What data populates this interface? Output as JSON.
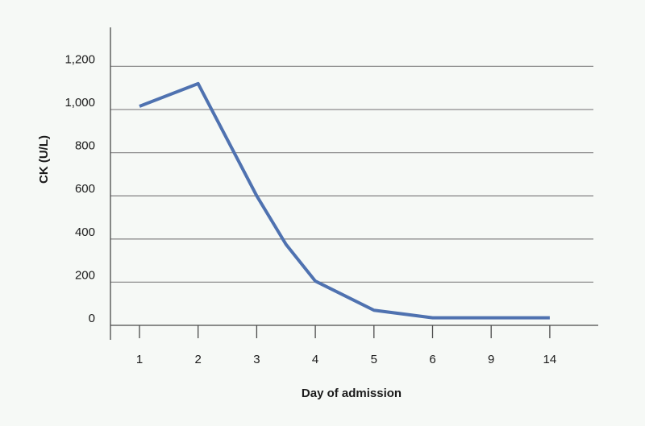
{
  "chart_data": {
    "type": "line",
    "title": "",
    "xlabel": "Day of admission",
    "ylabel": "CK (U/L)",
    "categories": [
      "1",
      "2",
      "3",
      "4",
      "5",
      "6",
      "9",
      "14"
    ],
    "series": [
      {
        "values": [
          1015,
          1120,
          600,
          205,
          70,
          35,
          35,
          35
        ]
      }
    ],
    "y_ticks": [
      0,
      200,
      400,
      600,
      800,
      1000,
      1200
    ],
    "y_tick_labels": [
      "0",
      "200",
      "400",
      "600",
      "800",
      "1,000",
      "1,200"
    ],
    "ylim": [
      0,
      1250
    ],
    "grid": true,
    "line_color": "#4f72b0"
  }
}
